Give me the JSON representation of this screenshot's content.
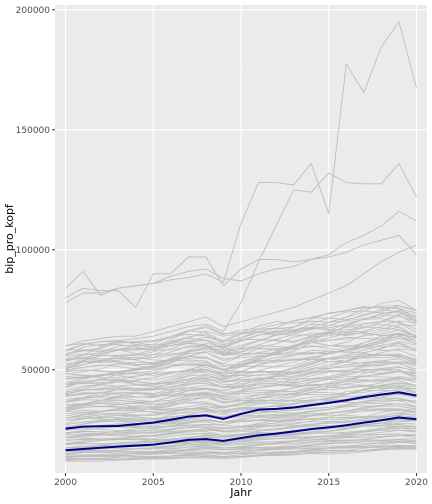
{
  "chart_data": {
    "type": "line",
    "xlabel": "Jahr",
    "ylabel": "bip_pro_kopf",
    "xlim": [
      1999.4,
      2020.6
    ],
    "ylim": [
      7000,
      202000
    ],
    "x_ticks": [
      2000,
      2005,
      2010,
      2015,
      2020
    ],
    "x_tick_labels": [
      "2000",
      "2005",
      "2010",
      "2015",
      "2020"
    ],
    "y_ticks": [
      50000,
      100000,
      150000,
      200000
    ],
    "y_tick_labels": [
      "50000",
      "100000",
      "150000",
      "200000"
    ],
    "grid": true,
    "legend": "none",
    "colors": {
      "panel": "#ebebeb",
      "grid_major": "#ffffff",
      "grid_minor": "#f2f2f2",
      "background_lines": "#bebebe",
      "highlight": "#00008b",
      "tick_label": "#4d4d4d",
      "axis_title": "#000000"
    },
    "years": [
      2000,
      2001,
      2002,
      2003,
      2004,
      2005,
      2006,
      2007,
      2008,
      2009,
      2010,
      2011,
      2012,
      2013,
      2014,
      2015,
      2016,
      2017,
      2018,
      2019,
      2020
    ],
    "highlight_series": [
      {
        "values": [
          25500,
          26300,
          26500,
          26600,
          27300,
          28000,
          29200,
          30500,
          31000,
          29500,
          31600,
          33400,
          33700,
          34300,
          35300,
          36200,
          37300,
          38600,
          39700,
          40600,
          39300
        ]
      },
      {
        "values": [
          16500,
          17000,
          17500,
          18000,
          18400,
          18800,
          19700,
          20800,
          21100,
          20400,
          21600,
          22700,
          23400,
          24300,
          25300,
          26000,
          26900,
          28000,
          29000,
          30100,
          29400
        ]
      }
    ],
    "notable_series": [
      {
        "values": [
          78000,
          82000,
          82000,
          84000,
          85000,
          86000,
          87500,
          88500,
          90000,
          86500,
          111000,
          128000,
          128000,
          127000,
          136000,
          115000,
          177500,
          165500,
          184500,
          195000,
          167500
        ]
      },
      {
        "values": [
          60000,
          61000,
          60000,
          62000,
          63000,
          64000,
          66000,
          68000,
          69000,
          66000,
          78000,
          95000,
          110000,
          125000,
          124000,
          132000,
          128000,
          127500,
          127500,
          136000,
          122000
        ]
      },
      {
        "values": [
          84000,
          91000,
          81000,
          84000,
          85000,
          86000,
          89000,
          91000,
          92000,
          88000,
          87000,
          90000,
          92000,
          93000,
          96000,
          98000,
          103000,
          106000,
          110000,
          116000,
          112000
        ]
      },
      {
        "values": [
          80000,
          84000,
          83000,
          83000,
          76000,
          90000,
          90000,
          97000,
          97000,
          85000,
          92000,
          96000,
          96000,
          95000,
          96000,
          97000,
          99000,
          102000,
          104000,
          106000,
          98000
        ]
      },
      {
        "values": [
          60000,
          62000,
          63000,
          64000,
          64000,
          66000,
          68000,
          70000,
          72000,
          68000,
          70000,
          72000,
          74000,
          76000,
          79000,
          82000,
          85000,
          90000,
          95000,
          99000,
          102000
        ]
      }
    ],
    "background_band": {
      "series_count": 120,
      "min_values": [
        12000,
        12200,
        12300,
        12400,
        12600,
        12700,
        12900,
        13300,
        13600,
        13200,
        13600,
        14000,
        14300,
        14600,
        15000,
        15300,
        15600,
        16000,
        16500,
        17000,
        16800
      ],
      "max_values": [
        58000,
        60000,
        61000,
        62000,
        62000,
        62000,
        64000,
        66000,
        67000,
        64000,
        66000,
        68000,
        69000,
        70000,
        72000,
        73000,
        74000,
        76000,
        77000,
        78000,
        75000
      ]
    }
  }
}
